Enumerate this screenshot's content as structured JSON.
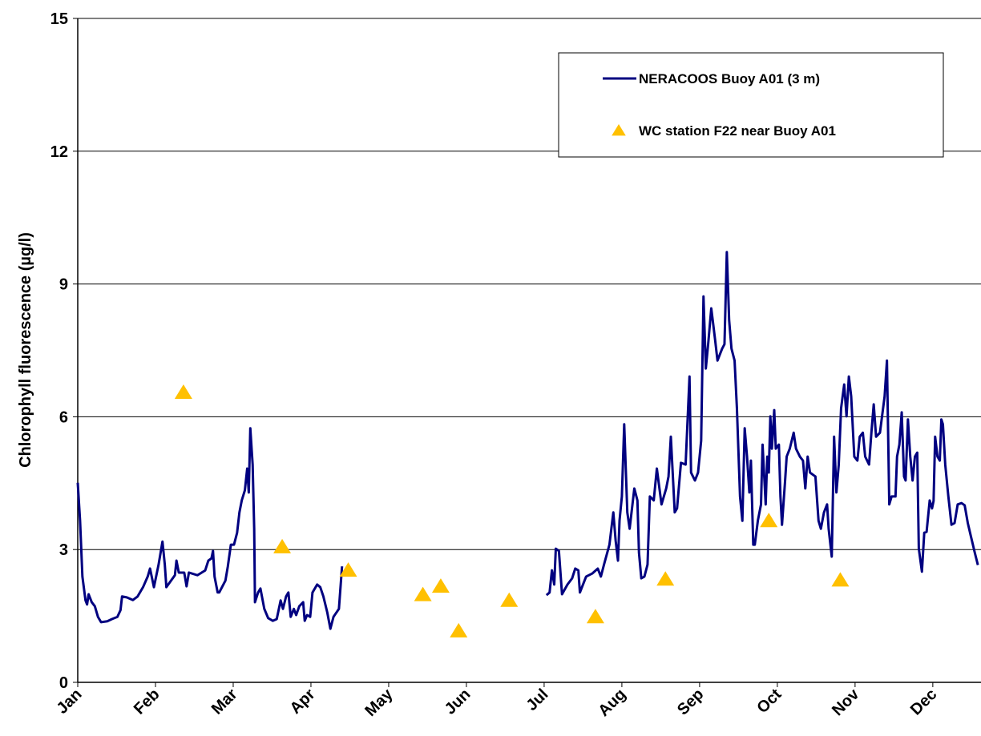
{
  "chart_data": {
    "type": "line",
    "y_label": "Chlorophyll fluorescence (µg/l)",
    "xlim": [
      0,
      11.62
    ],
    "ylim": [
      0,
      15
    ],
    "xticks": [
      {
        "value": 0,
        "label": "Jan"
      },
      {
        "value": 1,
        "label": "Feb"
      },
      {
        "value": 2,
        "label": "Mar"
      },
      {
        "value": 3,
        "label": "Apr"
      },
      {
        "value": 4,
        "label": "May"
      },
      {
        "value": 5,
        "label": "Jun"
      },
      {
        "value": 6,
        "label": "Jul"
      },
      {
        "value": 7,
        "label": "Aug"
      },
      {
        "value": 8,
        "label": "Sep"
      },
      {
        "value": 9,
        "label": "Oct"
      },
      {
        "value": 10,
        "label": "Nov"
      },
      {
        "value": 11,
        "label": "Dec"
      }
    ],
    "yticks": [
      0,
      3,
      6,
      9,
      12,
      15
    ],
    "grid": true,
    "legend": "upper right",
    "series": [
      {
        "name": "NERACOOS Buoy A01 (3 m)",
        "type": "line",
        "color": "#000080",
        "x": [
          0.0,
          0.03,
          0.06,
          0.1,
          0.12,
          0.14,
          0.18,
          0.22,
          0.26,
          0.3,
          0.38,
          0.44,
          0.51,
          0.55,
          0.57,
          0.63,
          0.71,
          0.77,
          0.84,
          0.9,
          0.93,
          0.98,
          1.04,
          1.09,
          1.12,
          1.14,
          1.25,
          1.27,
          1.3,
          1.37,
          1.4,
          1.43,
          1.54,
          1.64,
          1.68,
          1.72,
          1.74,
          1.76,
          1.8,
          1.82,
          1.9,
          1.93,
          1.97,
          2.01,
          2.05,
          2.08,
          2.11,
          2.15,
          2.18,
          2.2,
          2.22,
          2.25,
          2.27,
          2.28,
          2.32,
          2.35,
          2.4,
          2.45,
          2.51,
          2.56,
          2.61,
          2.64,
          2.68,
          2.71,
          2.74,
          2.78,
          2.81,
          2.85,
          2.9,
          2.92,
          2.95,
          2.99,
          3.02,
          3.08,
          3.12,
          3.16,
          3.21,
          3.25,
          3.29,
          3.36,
          3.4,
          5.0,
          6.03,
          6.07,
          6.1,
          6.13,
          6.15,
          6.19,
          6.23,
          6.3,
          6.36,
          6.4,
          6.44,
          6.46,
          6.54,
          6.62,
          6.69,
          6.73,
          6.77,
          6.84,
          6.89,
          6.92,
          6.95,
          6.97,
          7.0,
          7.03,
          7.07,
          7.1,
          7.16,
          7.2,
          7.22,
          7.25,
          7.29,
          7.33,
          7.36,
          7.41,
          7.45,
          7.51,
          7.57,
          7.6,
          7.63,
          7.68,
          7.71,
          7.76,
          7.82,
          7.87,
          7.89,
          7.94,
          7.98,
          8.02,
          8.05,
          8.08,
          8.11,
          8.15,
          8.2,
          8.23,
          8.29,
          8.32,
          8.35,
          8.38,
          8.41,
          8.45,
          8.48,
          8.52,
          8.55,
          8.58,
          8.61,
          8.64,
          8.66,
          8.69,
          8.71,
          8.75,
          8.79,
          8.81,
          8.85,
          8.87,
          8.89,
          8.91,
          8.93,
          8.96,
          8.98,
          9.02,
          9.04,
          9.06,
          9.1,
          9.12,
          9.16,
          9.21,
          9.24,
          9.29,
          9.33,
          9.36,
          9.39,
          9.42,
          9.49,
          9.53,
          9.56,
          9.6,
          9.64,
          9.66,
          9.7,
          9.73,
          9.76,
          9.79,
          9.82,
          9.86,
          9.89,
          9.92,
          9.95,
          9.99,
          10.03,
          10.06,
          10.1,
          10.13,
          10.18,
          10.21,
          10.24,
          10.27,
          10.32,
          10.38,
          10.41,
          10.44,
          10.47,
          10.52,
          10.54,
          10.57,
          10.6,
          10.63,
          10.65,
          10.68,
          10.71,
          10.74,
          10.77,
          10.8,
          10.82,
          10.86,
          10.89,
          10.92,
          10.96,
          10.99,
          11.01,
          11.03,
          11.06,
          11.09,
          11.11,
          11.13,
          11.16,
          11.2,
          11.24,
          11.28,
          11.32,
          11.37,
          11.41,
          11.45,
          11.49,
          11.54,
          11.58
        ],
        "values": [
          4.51,
          3.65,
          2.39,
          1.85,
          1.76,
          1.99,
          1.81,
          1.72,
          1.48,
          1.36,
          1.38,
          1.43,
          1.48,
          1.63,
          1.94,
          1.92,
          1.86,
          1.94,
          2.15,
          2.39,
          2.57,
          2.15,
          2.66,
          3.18,
          2.66,
          2.15,
          2.42,
          2.75,
          2.48,
          2.48,
          2.17,
          2.48,
          2.42,
          2.53,
          2.75,
          2.8,
          2.97,
          2.39,
          2.03,
          2.03,
          2.3,
          2.61,
          3.11,
          3.11,
          3.38,
          3.84,
          4.11,
          4.34,
          4.83,
          4.29,
          5.74,
          4.92,
          3.47,
          1.81,
          2.03,
          2.12,
          1.66,
          1.45,
          1.39,
          1.43,
          1.85,
          1.66,
          1.94,
          2.03,
          1.48,
          1.66,
          1.52,
          1.72,
          1.81,
          1.39,
          1.52,
          1.48,
          2.03,
          2.21,
          2.15,
          1.94,
          1.58,
          1.21,
          1.48,
          1.66,
          2.62,
          null,
          1.97,
          2.03,
          2.53,
          2.21,
          3.02,
          2.97,
          1.99,
          2.21,
          2.35,
          2.57,
          2.53,
          2.03,
          2.39,
          2.46,
          2.57,
          2.39,
          2.66,
          3.11,
          3.84,
          3.2,
          2.75,
          3.66,
          4.2,
          5.83,
          3.84,
          3.47,
          4.38,
          4.11,
          2.93,
          2.35,
          2.39,
          2.66,
          4.2,
          4.11,
          4.83,
          4.02,
          4.38,
          4.65,
          5.55,
          3.84,
          3.93,
          4.96,
          4.92,
          6.91,
          4.74,
          4.56,
          4.74,
          5.46,
          8.72,
          7.09,
          7.64,
          8.45,
          7.73,
          7.27,
          7.54,
          7.64,
          9.72,
          8.18,
          7.54,
          7.27,
          6.19,
          4.2,
          3.65,
          5.74,
          5.1,
          4.29,
          5.01,
          3.11,
          3.11,
          3.66,
          4.02,
          5.37,
          4.02,
          5.1,
          4.74,
          6.01,
          5.28,
          6.15,
          5.28,
          5.37,
          4.2,
          3.56,
          4.56,
          5.1,
          5.28,
          5.64,
          5.28,
          5.1,
          5.01,
          4.38,
          5.1,
          4.74,
          4.65,
          3.65,
          3.47,
          3.84,
          4.02,
          3.47,
          2.84,
          5.55,
          4.29,
          4.92,
          6.19,
          6.73,
          6.01,
          6.91,
          6.46,
          5.1,
          5.01,
          5.55,
          5.64,
          5.1,
          4.92,
          5.64,
          6.28,
          5.55,
          5.64,
          6.46,
          7.27,
          4.02,
          4.2,
          4.2,
          5.1,
          5.37,
          6.1,
          4.65,
          4.56,
          5.94,
          5.1,
          4.56,
          5.1,
          5.19,
          3.02,
          2.5,
          3.38,
          3.4,
          4.11,
          3.93,
          4.1,
          5.55,
          5.1,
          5.01,
          5.94,
          5.83,
          4.92,
          4.2,
          3.56,
          3.6,
          4.02,
          4.05,
          4.0,
          3.6,
          3.3,
          2.93,
          2.65
        ]
      },
      {
        "name": "WC station F22 near Buoy A01",
        "type": "scatter",
        "color": "#FFC000",
        "x": [
          1.36,
          2.63,
          3.48,
          4.44,
          4.67,
          4.9,
          5.55,
          6.66,
          7.56,
          8.89,
          9.81
        ],
        "values": [
          6.55,
          3.06,
          2.53,
          1.98,
          2.17,
          1.16,
          1.85,
          1.48,
          2.33,
          3.65,
          2.31
        ]
      }
    ]
  }
}
